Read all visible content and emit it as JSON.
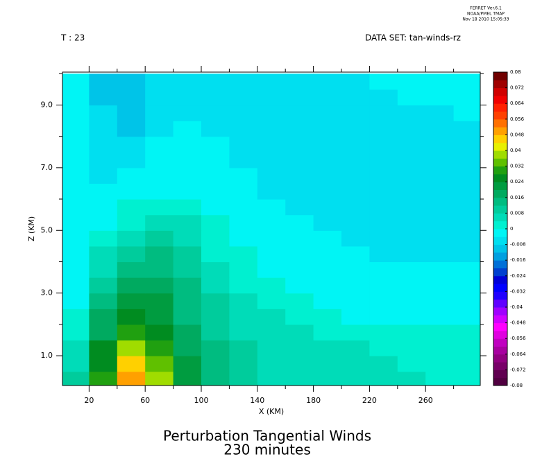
{
  "chart_data": {
    "type": "contour",
    "title": "Perturbation Tangential Winds",
    "subtitle": "230 minutes",
    "time_label": "T : 23",
    "dataset_label": "DATA SET: tan-winds-rz",
    "software_info": [
      "FERRET Ver.6.1",
      "NOAA/PMEL TMAP",
      "Nov 18 2010 15:05:33"
    ],
    "x_label": "X (KM)",
    "y_label": "Z (KM)",
    "xlim": [
      1,
      299
    ],
    "ylim": [
      0.05,
      10.05
    ],
    "xticks": [
      20,
      60,
      100,
      140,
      180,
      220,
      260
    ],
    "xminor_ticks": [
      40,
      80,
      120,
      160,
      200,
      240,
      280
    ],
    "yticks": [
      {
        "value": 1,
        "label": "1.0"
      },
      {
        "value": 3,
        "label": "3.0"
      },
      {
        "value": 5,
        "label": "5.0"
      },
      {
        "value": 7,
        "label": "7.0"
      },
      {
        "value": 9,
        "label": "9.0"
      }
    ],
    "yminor_ticks": [
      2,
      4,
      6,
      8,
      10
    ],
    "x": [
      10,
      30,
      50,
      70,
      90,
      110,
      130,
      150,
      170,
      190,
      210,
      230,
      250,
      270,
      290
    ],
    "y": [
      0.25,
      0.75,
      1.25,
      1.75,
      2.25,
      2.75,
      3.25,
      3.75,
      4.25,
      4.75,
      5.25,
      5.75,
      6.25,
      6.75,
      7.25,
      7.75,
      8.25,
      8.75,
      9.25,
      9.75
    ],
    "z": [
      [
        0.01,
        0.03,
        0.05,
        0.038,
        0.022,
        0.014,
        0.01,
        0.008,
        0.006,
        0.005,
        0.005,
        0.004,
        0.004,
        0.002,
        0.001
      ],
      [
        0.008,
        0.028,
        0.044,
        0.035,
        0.021,
        0.013,
        0.01,
        0.007,
        0.006,
        0.005,
        0.0045,
        0.004,
        0.0035,
        0.003,
        0.002
      ],
      [
        0.006,
        0.024,
        0.036,
        0.031,
        0.019,
        0.012,
        0.009,
        0.007,
        0.005,
        0.0045,
        0.004,
        0.0035,
        0.003,
        0.003,
        0.0025
      ],
      [
        0.003,
        0.019,
        0.03,
        0.027,
        0.017,
        0.011,
        0.008,
        0.006,
        0.0045,
        0.0035,
        0.003,
        0.002,
        0.002,
        0.0015,
        0.001
      ],
      [
        0.001,
        0.016,
        0.025,
        0.023,
        0.015,
        0.01,
        0.007,
        0.0045,
        0.0025,
        0.001,
        -0.0005,
        -0.001,
        -0.001,
        -0.001,
        -0.001
      ],
      [
        -0.001,
        0.013,
        0.021,
        0.02,
        0.014,
        0.009,
        0.0055,
        0.003,
        0.001,
        -0.0005,
        -0.001,
        -0.0015,
        -0.0015,
        -0.0015,
        -0.0015
      ],
      [
        -0.002,
        0.01,
        0.017,
        0.017,
        0.012,
        0.007,
        0.0035,
        0.001,
        -0.0005,
        -0.0015,
        -0.002,
        -0.002,
        -0.002,
        -0.002,
        -0.002
      ],
      [
        -0.0025,
        0.007,
        0.014,
        0.015,
        0.011,
        0.0055,
        0.002,
        -0.0005,
        -0.0015,
        -0.002,
        -0.0025,
        -0.0025,
        -0.003,
        -0.003,
        -0.003
      ],
      [
        -0.003,
        0.004,
        0.011,
        0.012,
        0.009,
        0.0035,
        0.0005,
        -0.0015,
        -0.0025,
        -0.003,
        -0.0035,
        -0.0045,
        -0.005,
        -0.005,
        -0.005
      ],
      [
        -0.0035,
        0.001,
        0.007,
        0.009,
        0.007,
        0.002,
        -0.001,
        -0.0025,
        -0.003,
        -0.004,
        -0.0045,
        -0.005,
        -0.005,
        -0.005,
        -0.005
      ],
      [
        -0.0035,
        -0.001,
        0.0035,
        0.006,
        0.0045,
        0.0005,
        -0.002,
        -0.003,
        -0.0035,
        -0.0045,
        -0.005,
        -0.005,
        -0.005,
        -0.005,
        -0.005
      ],
      [
        -0.0035,
        -0.002,
        0.0005,
        0.0025,
        0.0015,
        -0.001,
        -0.0025,
        -0.0035,
        -0.0045,
        -0.005,
        -0.005,
        -0.005,
        -0.005,
        -0.005,
        -0.005
      ],
      [
        -0.0035,
        -0.003,
        -0.002,
        -0.0005,
        -0.001,
        -0.002,
        -0.003,
        -0.0045,
        -0.005,
        -0.005,
        -0.005,
        -0.005,
        -0.005,
        -0.005,
        -0.005
      ],
      [
        -0.003,
        -0.0045,
        -0.004,
        -0.003,
        -0.0025,
        -0.003,
        -0.004,
        -0.005,
        -0.005,
        -0.005,
        -0.005,
        -0.005,
        -0.005,
        -0.005,
        -0.005
      ],
      [
        -0.003,
        -0.005,
        -0.005,
        -0.003,
        -0.0025,
        -0.003,
        -0.0045,
        -0.005,
        -0.005,
        -0.005,
        -0.005,
        -0.005,
        -0.005,
        -0.005,
        -0.005
      ],
      [
        -0.003,
        -0.0055,
        -0.0055,
        -0.0035,
        -0.0025,
        -0.0035,
        -0.005,
        -0.005,
        -0.005,
        -0.005,
        -0.005,
        -0.005,
        -0.005,
        -0.005,
        -0.005
      ],
      [
        -0.003,
        -0.007,
        -0.009,
        -0.0045,
        -0.003,
        -0.0045,
        -0.005,
        -0.005,
        -0.005,
        -0.005,
        -0.005,
        -0.005,
        -0.005,
        -0.005,
        -0.005
      ],
      [
        -0.003,
        -0.008,
        -0.009,
        -0.005,
        -0.0045,
        -0.005,
        -0.005,
        -0.005,
        -0.005,
        -0.005,
        -0.005,
        -0.005,
        -0.005,
        -0.0045,
        -0.0035
      ],
      [
        -0.003,
        -0.009,
        -0.01,
        -0.0055,
        -0.005,
        -0.005,
        -0.005,
        -0.005,
        -0.005,
        -0.005,
        -0.005,
        -0.0045,
        -0.004,
        -0.003,
        -0.0025
      ],
      [
        -0.003,
        -0.009,
        -0.009,
        -0.0055,
        -0.005,
        -0.005,
        -0.005,
        -0.005,
        -0.005,
        -0.005,
        -0.0045,
        -0.0035,
        -0.003,
        -0.0025,
        -0.002
      ]
    ],
    "clim": [
      -0.08,
      0.08
    ],
    "colorbar_ticks": [
      0.08,
      0.072,
      0.064,
      0.056,
      0.048,
      0.04,
      0.032,
      0.024,
      0.016,
      0.008,
      0,
      -0.008,
      -0.016,
      -0.024,
      -0.032,
      -0.04,
      -0.048,
      -0.056,
      -0.064,
      -0.072,
      -0.08
    ],
    "palette": [
      "#500040",
      "#600050",
      "#780068",
      "#900080",
      "#a800a0",
      "#c000c0",
      "#e000e0",
      "#ff00ff",
      "#d000ff",
      "#a000ff",
      "#6000ff",
      "#2000ff",
      "#0000ff",
      "#0000d8",
      "#0040d0",
      "#0070d8",
      "#00a0e0",
      "#00c4e8",
      "#00dff0",
      "#00f5f5",
      "#00f0d0",
      "#00dcb8",
      "#00cc9c",
      "#00bc80",
      "#00aa60",
      "#009c40",
      "#008c20",
      "#20a010",
      "#60c000",
      "#a0dc00",
      "#e8f000",
      "#ffd000",
      "#ffa000",
      "#ff7000",
      "#ff4000",
      "#ff2000",
      "#f00000",
      "#d00000",
      "#a00000",
      "#700000"
    ]
  }
}
